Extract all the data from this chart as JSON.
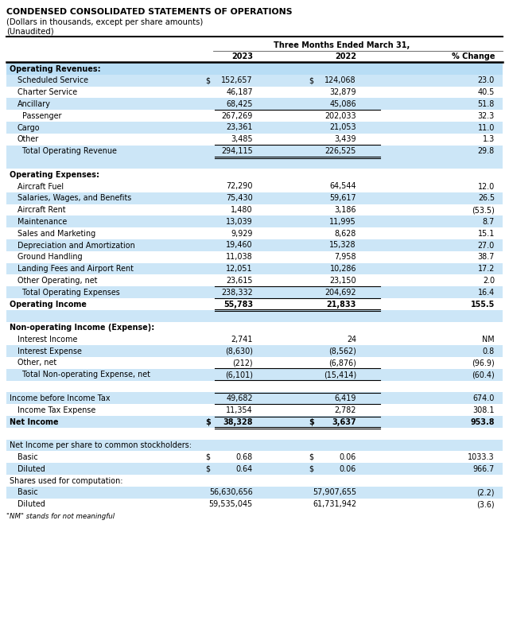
{
  "title1": "CONDENSED CONSOLIDATED STATEMENTS OF OPERATIONS",
  "title2": "(Dollars in thousands, except per share amounts)",
  "title3": "(Unaudited)",
  "col_header_center": "Three Months Ended March 31,",
  "col_headers": [
    "2023",
    "2022",
    "% Change"
  ],
  "bg_light": "#cce6f7",
  "bg_header": "#b8ddf5",
  "bg_white": "#FFFFFF",
  "rows": [
    {
      "label": "Operating Revenues:",
      "indent": 0,
      "val2023": "",
      "val2022": "",
      "pct": "",
      "bold": true,
      "bg": "header",
      "dollar2023": false,
      "dollar2022": false,
      "border_bottom": false,
      "double_bottom": false,
      "border_top": false
    },
    {
      "label": "Scheduled Service",
      "indent": 1,
      "val2023": "152,657",
      "val2022": "124,068",
      "pct": "23.0",
      "bold": false,
      "bg": "light",
      "dollar2023": true,
      "dollar2022": true,
      "border_bottom": false,
      "double_bottom": false,
      "border_top": false
    },
    {
      "label": "Charter Service",
      "indent": 1,
      "val2023": "46,187",
      "val2022": "32,879",
      "pct": "40.5",
      "bold": false,
      "bg": "white",
      "dollar2023": false,
      "dollar2022": false,
      "border_bottom": false,
      "double_bottom": false,
      "border_top": false
    },
    {
      "label": "Ancillary",
      "indent": 1,
      "val2023": "68,425",
      "val2022": "45,086",
      "pct": "51.8",
      "bold": false,
      "bg": "light",
      "dollar2023": false,
      "dollar2022": false,
      "border_bottom": true,
      "double_bottom": false,
      "border_top": false
    },
    {
      "label": "  Passenger",
      "indent": 1,
      "val2023": "267,269",
      "val2022": "202,033",
      "pct": "32.3",
      "bold": false,
      "bg": "white",
      "dollar2023": false,
      "dollar2022": false,
      "border_bottom": false,
      "double_bottom": false,
      "border_top": false
    },
    {
      "label": "Cargo",
      "indent": 1,
      "val2023": "23,361",
      "val2022": "21,053",
      "pct": "11.0",
      "bold": false,
      "bg": "light",
      "dollar2023": false,
      "dollar2022": false,
      "border_bottom": false,
      "double_bottom": false,
      "border_top": false
    },
    {
      "label": "Other",
      "indent": 1,
      "val2023": "3,485",
      "val2022": "3,439",
      "pct": "1.3",
      "bold": false,
      "bg": "white",
      "dollar2023": false,
      "dollar2022": false,
      "border_bottom": true,
      "double_bottom": false,
      "border_top": false
    },
    {
      "label": "  Total Operating Revenue",
      "indent": 1,
      "val2023": "294,115",
      "val2022": "226,525",
      "pct": "29.8",
      "bold": false,
      "bg": "light",
      "dollar2023": false,
      "dollar2022": false,
      "border_bottom": true,
      "double_bottom": true,
      "border_top": false
    },
    {
      "label": "",
      "indent": 0,
      "val2023": "",
      "val2022": "",
      "pct": "",
      "bold": false,
      "bg": "light",
      "dollar2023": false,
      "dollar2022": false,
      "border_bottom": false,
      "double_bottom": false,
      "border_top": false
    },
    {
      "label": "Operating Expenses:",
      "indent": 0,
      "val2023": "",
      "val2022": "",
      "pct": "",
      "bold": true,
      "bg": "white",
      "dollar2023": false,
      "dollar2022": false,
      "border_bottom": false,
      "double_bottom": false,
      "border_top": false
    },
    {
      "label": "Aircraft Fuel",
      "indent": 1,
      "val2023": "72,290",
      "val2022": "64,544",
      "pct": "12.0",
      "bold": false,
      "bg": "white",
      "dollar2023": false,
      "dollar2022": false,
      "border_bottom": false,
      "double_bottom": false,
      "border_top": false
    },
    {
      "label": "Salaries, Wages, and Benefits",
      "indent": 1,
      "val2023": "75,430",
      "val2022": "59,617",
      "pct": "26.5",
      "bold": false,
      "bg": "light",
      "dollar2023": false,
      "dollar2022": false,
      "border_bottom": false,
      "double_bottom": false,
      "border_top": false
    },
    {
      "label": "Aircraft Rent",
      "indent": 1,
      "val2023": "1,480",
      "val2022": "3,186",
      "pct": "(53.5)",
      "bold": false,
      "bg": "white",
      "dollar2023": false,
      "dollar2022": false,
      "border_bottom": false,
      "double_bottom": false,
      "border_top": false
    },
    {
      "label": "Maintenance",
      "indent": 1,
      "val2023": "13,039",
      "val2022": "11,995",
      "pct": "8.7",
      "bold": false,
      "bg": "light",
      "dollar2023": false,
      "dollar2022": false,
      "border_bottom": false,
      "double_bottom": false,
      "border_top": false
    },
    {
      "label": "Sales and Marketing",
      "indent": 1,
      "val2023": "9,929",
      "val2022": "8,628",
      "pct": "15.1",
      "bold": false,
      "bg": "white",
      "dollar2023": false,
      "dollar2022": false,
      "border_bottom": false,
      "double_bottom": false,
      "border_top": false
    },
    {
      "label": "Depreciation and Amortization",
      "indent": 1,
      "val2023": "19,460",
      "val2022": "15,328",
      "pct": "27.0",
      "bold": false,
      "bg": "light",
      "dollar2023": false,
      "dollar2022": false,
      "border_bottom": false,
      "double_bottom": false,
      "border_top": false
    },
    {
      "label": "Ground Handling",
      "indent": 1,
      "val2023": "11,038",
      "val2022": "7,958",
      "pct": "38.7",
      "bold": false,
      "bg": "white",
      "dollar2023": false,
      "dollar2022": false,
      "border_bottom": false,
      "double_bottom": false,
      "border_top": false
    },
    {
      "label": "Landing Fees and Airport Rent",
      "indent": 1,
      "val2023": "12,051",
      "val2022": "10,286",
      "pct": "17.2",
      "bold": false,
      "bg": "light",
      "dollar2023": false,
      "dollar2022": false,
      "border_bottom": false,
      "double_bottom": false,
      "border_top": false
    },
    {
      "label": "Other Operating, net",
      "indent": 1,
      "val2023": "23,615",
      "val2022": "23,150",
      "pct": "2.0",
      "bold": false,
      "bg": "white",
      "dollar2023": false,
      "dollar2022": false,
      "border_bottom": true,
      "double_bottom": false,
      "border_top": false
    },
    {
      "label": "  Total Operating Expenses",
      "indent": 1,
      "val2023": "238,332",
      "val2022": "204,692",
      "pct": "16.4",
      "bold": false,
      "bg": "light",
      "dollar2023": false,
      "dollar2022": false,
      "border_bottom": true,
      "double_bottom": false,
      "border_top": false
    },
    {
      "label": "Operating Income",
      "indent": 0,
      "val2023": "55,783",
      "val2022": "21,833",
      "pct": "155.5",
      "bold": true,
      "bg": "white",
      "dollar2023": false,
      "dollar2022": false,
      "border_bottom": true,
      "double_bottom": true,
      "border_top": false
    },
    {
      "label": "",
      "indent": 0,
      "val2023": "",
      "val2022": "",
      "pct": "",
      "bold": false,
      "bg": "light",
      "dollar2023": false,
      "dollar2022": false,
      "border_bottom": false,
      "double_bottom": false,
      "border_top": false
    },
    {
      "label": "Non-operating Income (Expense):",
      "indent": 0,
      "val2023": "",
      "val2022": "",
      "pct": "",
      "bold": true,
      "bg": "white",
      "dollar2023": false,
      "dollar2022": false,
      "border_bottom": false,
      "double_bottom": false,
      "border_top": false
    },
    {
      "label": "Interest Income",
      "indent": 1,
      "val2023": "2,741",
      "val2022": "24",
      "pct": "NM",
      "bold": false,
      "bg": "white",
      "dollar2023": false,
      "dollar2022": false,
      "border_bottom": false,
      "double_bottom": false,
      "border_top": false
    },
    {
      "label": "Interest Expense",
      "indent": 1,
      "val2023": "(8,630)",
      "val2022": "(8,562)",
      "pct": "0.8",
      "bold": false,
      "bg": "light",
      "dollar2023": false,
      "dollar2022": false,
      "border_bottom": false,
      "double_bottom": false,
      "border_top": false
    },
    {
      "label": "Other, net",
      "indent": 1,
      "val2023": "(212)",
      "val2022": "(6,876)",
      "pct": "(96.9)",
      "bold": false,
      "bg": "white",
      "dollar2023": false,
      "dollar2022": false,
      "border_bottom": true,
      "double_bottom": false,
      "border_top": false
    },
    {
      "label": "  Total Non-operating Expense, net",
      "indent": 1,
      "val2023": "(6,101)",
      "val2022": "(15,414)",
      "pct": "(60.4)",
      "bold": false,
      "bg": "light",
      "dollar2023": false,
      "dollar2022": false,
      "border_bottom": true,
      "double_bottom": false,
      "border_top": false
    },
    {
      "label": "",
      "indent": 0,
      "val2023": "",
      "val2022": "",
      "pct": "",
      "bold": false,
      "bg": "white",
      "dollar2023": false,
      "dollar2022": false,
      "border_bottom": false,
      "double_bottom": false,
      "border_top": false
    },
    {
      "label": "Income before Income Tax",
      "indent": 0,
      "val2023": "49,682",
      "val2022": "6,419",
      "pct": "674.0",
      "bold": false,
      "bg": "light",
      "dollar2023": false,
      "dollar2022": false,
      "border_bottom": true,
      "double_bottom": false,
      "border_top": true
    },
    {
      "label": "Income Tax Expense",
      "indent": 1,
      "val2023": "11,354",
      "val2022": "2,782",
      "pct": "308.1",
      "bold": false,
      "bg": "white",
      "dollar2023": false,
      "dollar2022": false,
      "border_bottom": false,
      "double_bottom": false,
      "border_top": false
    },
    {
      "label": "Net Income",
      "indent": 0,
      "val2023": "38,328",
      "val2022": "3,637",
      "pct": "953.8",
      "bold": true,
      "bg": "light",
      "dollar2023": true,
      "dollar2022": true,
      "border_bottom": true,
      "double_bottom": true,
      "border_top": true
    },
    {
      "label": "",
      "indent": 0,
      "val2023": "",
      "val2022": "",
      "pct": "",
      "bold": false,
      "bg": "white",
      "dollar2023": false,
      "dollar2022": false,
      "border_bottom": false,
      "double_bottom": false,
      "border_top": false
    },
    {
      "label": "Net Income per share to common stockholders:",
      "indent": 0,
      "val2023": "",
      "val2022": "",
      "pct": "",
      "bold": false,
      "bg": "light",
      "dollar2023": false,
      "dollar2022": false,
      "border_bottom": false,
      "double_bottom": false,
      "border_top": false
    },
    {
      "label": "Basic",
      "indent": 1,
      "val2023": "0.68",
      "val2022": "0.06",
      "pct": "1033.3",
      "bold": false,
      "bg": "white",
      "dollar2023": true,
      "dollar2022": true,
      "border_bottom": false,
      "double_bottom": false,
      "border_top": false
    },
    {
      "label": "Diluted",
      "indent": 1,
      "val2023": "0.64",
      "val2022": "0.06",
      "pct": "966.7",
      "bold": false,
      "bg": "light",
      "dollar2023": true,
      "dollar2022": true,
      "border_bottom": false,
      "double_bottom": false,
      "border_top": false
    },
    {
      "label": "Shares used for computation:",
      "indent": 0,
      "val2023": "",
      "val2022": "",
      "pct": "",
      "bold": false,
      "bg": "white",
      "dollar2023": false,
      "dollar2022": false,
      "border_bottom": false,
      "double_bottom": false,
      "border_top": false
    },
    {
      "label": "Basic",
      "indent": 1,
      "val2023": "56,630,656",
      "val2022": "57,907,655",
      "pct": "(2.2)",
      "bold": false,
      "bg": "light",
      "dollar2023": false,
      "dollar2022": false,
      "border_bottom": false,
      "double_bottom": false,
      "border_top": false
    },
    {
      "label": "Diluted",
      "indent": 1,
      "val2023": "59,535,045",
      "val2022": "61,731,942",
      "pct": "(3.6)",
      "bold": false,
      "bg": "white",
      "dollar2023": false,
      "dollar2022": false,
      "border_bottom": false,
      "double_bottom": false,
      "border_top": false
    }
  ],
  "footnote": "\"NM\" stands for not meaningful"
}
